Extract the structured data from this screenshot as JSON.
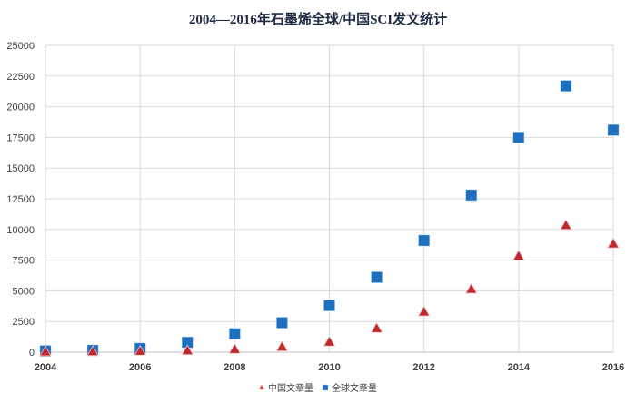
{
  "chart_data": {
    "type": "scatter",
    "title": "2004—2016年石墨烯全球/中国SCI发文统计",
    "xlabel": "",
    "ylabel": "",
    "xlim": [
      2004,
      2016
    ],
    "ylim": [
      0,
      25000
    ],
    "x_ticks": [
      "2004",
      "2006",
      "2008",
      "2010",
      "2012",
      "2014",
      "2016"
    ],
    "y_ticks": [
      "0",
      "2500",
      "5000",
      "7500",
      "10000",
      "12500",
      "15000",
      "17500",
      "20000",
      "22500",
      "25000"
    ],
    "grid": true,
    "legend_position": "bottom",
    "x": [
      2004,
      2005,
      2006,
      2007,
      2008,
      2009,
      2010,
      2011,
      2012,
      2013,
      2014,
      2015,
      2016
    ],
    "series": [
      {
        "name": "中国文章量",
        "color": "#c0282d",
        "marker": "triangle",
        "values": [
          0,
          20,
          50,
          100,
          200,
          400,
          800,
          1900,
          3250,
          5100,
          7800,
          10300,
          8800
        ]
      },
      {
        "name": "全球文章量",
        "color": "#1f6fbf",
        "marker": "square",
        "values": [
          100,
          150,
          300,
          800,
          1500,
          2400,
          3800,
          6100,
          9100,
          12800,
          17500,
          21700,
          18100
        ]
      }
    ]
  }
}
